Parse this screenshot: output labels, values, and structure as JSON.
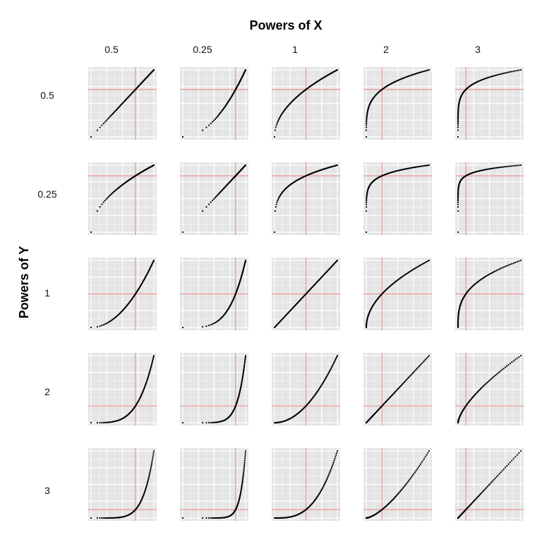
{
  "chart_data": {
    "type": "scatter",
    "title_x": "Powers of X",
    "title_y": "Powers of Y",
    "x_powers": [
      "0.5",
      "0.25",
      "1",
      "2",
      "3"
    ],
    "y_powers": [
      "0.5",
      "0.25",
      "1",
      "2",
      "3"
    ],
    "point_color": "#000000",
    "reference_line_color": "#f08080",
    "panel_background": "#e5e5e5",
    "grid_color": "#ffffff",
    "reference_lines": {
      "x": 1,
      "y": 1
    },
    "panels": [
      {
        "row": "0.5",
        "col": "0.5",
        "fx": "pow",
        "px": 0.5,
        "fy": "pow",
        "py": 0.5
      },
      {
        "row": "0.5",
        "col": "0.25",
        "fx": "pow",
        "px": 0.25,
        "fy": "pow",
        "py": 0.5
      },
      {
        "row": "0.5",
        "col": "1",
        "fx": "pow",
        "px": 1,
        "fy": "pow",
        "py": 0.5
      },
      {
        "row": "0.5",
        "col": "2",
        "fx": "pow",
        "px": 2,
        "fy": "pow",
        "py": 0.5
      },
      {
        "row": "0.5",
        "col": "3",
        "fx": "pow",
        "px": 3,
        "fy": "pow",
        "py": 0.5
      },
      {
        "row": "0.25",
        "col": "0.5",
        "fx": "pow",
        "px": 0.5,
        "fy": "pow",
        "py": 0.25
      },
      {
        "row": "0.25",
        "col": "0.25",
        "fx": "pow",
        "px": 0.25,
        "fy": "pow",
        "py": 0.25
      },
      {
        "row": "0.25",
        "col": "1",
        "fx": "pow",
        "px": 1,
        "fy": "pow",
        "py": 0.25
      },
      {
        "row": "0.25",
        "col": "2",
        "fx": "pow",
        "px": 2,
        "fy": "pow",
        "py": 0.25
      },
      {
        "row": "0.25",
        "col": "3",
        "fx": "pow",
        "px": 3,
        "fy": "pow",
        "py": 0.25
      },
      {
        "row": "1",
        "col": "0.5",
        "fx": "pow",
        "px": 0.5,
        "fy": "pow",
        "py": 1
      },
      {
        "row": "1",
        "col": "0.25",
        "fx": "pow",
        "px": 0.25,
        "fy": "pow",
        "py": 1
      },
      {
        "row": "1",
        "col": "1",
        "fx": "pow",
        "px": 1,
        "fy": "pow",
        "py": 1
      },
      {
        "row": "1",
        "col": "2",
        "fx": "pow",
        "px": 2,
        "fy": "pow",
        "py": 1
      },
      {
        "row": "1",
        "col": "3",
        "fx": "pow",
        "px": 3,
        "fy": "pow",
        "py": 1
      },
      {
        "row": "2",
        "col": "0.5",
        "fx": "pow",
        "px": 0.5,
        "fy": "pow",
        "py": 2
      },
      {
        "row": "2",
        "col": "0.25",
        "fx": "pow",
        "px": 0.25,
        "fy": "pow",
        "py": 2
      },
      {
        "row": "2",
        "col": "1",
        "fx": "pow",
        "px": 1,
        "fy": "pow",
        "py": 2
      },
      {
        "row": "2",
        "col": "2",
        "fx": "pow",
        "px": 2,
        "fy": "pow",
        "py": 2
      },
      {
        "row": "2",
        "col": "3",
        "fx": "pow",
        "px": 3,
        "fy": "pow",
        "py": 2
      },
      {
        "row": "3",
        "col": "0.5",
        "fx": "pow",
        "px": 0.5,
        "fy": "pow",
        "py": 3
      },
      {
        "row": "3",
        "col": "0.25",
        "fx": "pow",
        "px": 0.25,
        "fy": "pow",
        "py": 3
      },
      {
        "row": "3",
        "col": "1",
        "fx": "pow",
        "px": 1,
        "fy": "pow",
        "py": 3
      },
      {
        "row": "3",
        "col": "2",
        "fx": "pow",
        "px": 2,
        "fy": "pow",
        "py": 3
      },
      {
        "row": "3",
        "col": "3",
        "fx": "pow",
        "px": 3,
        "fy": "pow",
        "py": 3
      }
    ],
    "grid": true,
    "axis_ticks_shown": false
  }
}
